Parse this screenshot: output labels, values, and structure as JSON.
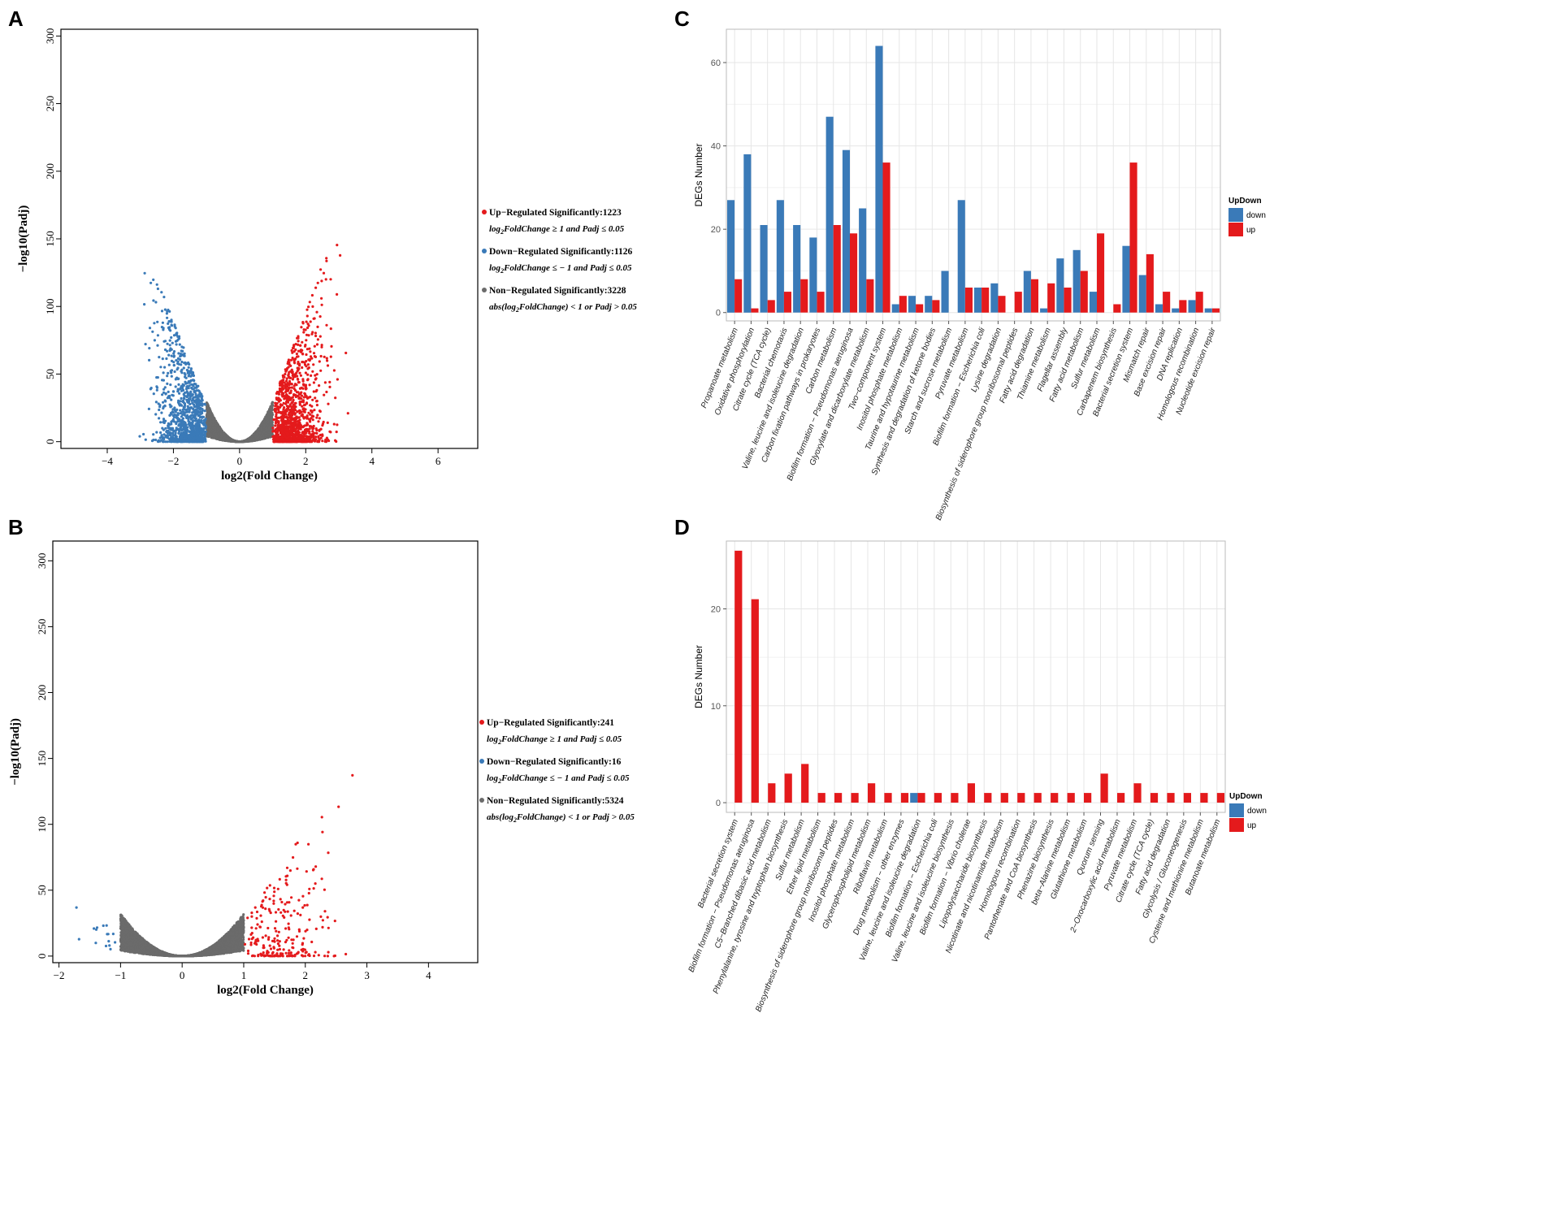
{
  "panels": {
    "A": "A",
    "B": "B",
    "C": "C",
    "D": "D"
  },
  "colors": {
    "up": "#e41a1c",
    "down": "#3a7ab8",
    "non": "#6b6b6b",
    "grid": "#e6e6e6"
  },
  "chart_data": [
    {
      "panel": "A",
      "type": "scatter",
      "title": "",
      "xlabel": "log2(Fold Change)",
      "ylabel": "−log10(Padj)",
      "xlim": [
        -5.4,
        7.2
      ],
      "ylim": [
        -5,
        305
      ],
      "xticks": [
        -4,
        -2,
        0,
        2,
        4,
        6
      ],
      "xtick_labels": [
        "−4",
        "−2",
        "0",
        "2",
        "4",
        "6"
      ],
      "yticks": [
        0,
        50,
        100,
        150,
        200,
        250,
        300
      ],
      "ytick_labels": [
        "0",
        "50",
        "100",
        "150",
        "200",
        "250",
        "300"
      ],
      "counts": {
        "up": 1223,
        "down": 1126,
        "non": 3228
      },
      "legend": [
        {
          "cls": "up",
          "title": "Up−Regulated Significantly:1223",
          "pre": "log",
          "sub": "2",
          "post": "FoldChange ≥ 1  and Padj ≤ 0.05"
        },
        {
          "cls": "down",
          "title": "Down−Regulated Significantly:1126",
          "pre": "log",
          "sub": "2",
          "post": "FoldChange ≤ − 1  and Padj ≤ 0.05"
        },
        {
          "cls": "non",
          "title": "Non−Regulated Significantly:3228",
          "pre": "abs(log",
          "sub": "2",
          "post": "FoldChange) < 1 or Padj > 0.05"
        }
      ]
    },
    {
      "panel": "B",
      "type": "scatter",
      "title": "",
      "xlabel": "log2(Fold Change)",
      "ylabel": "−log10(Padj)",
      "xlim": [
        -2.1,
        4.8
      ],
      "ylim": [
        -5,
        315
      ],
      "xticks": [
        -2,
        -1,
        0,
        1,
        2,
        3,
        4
      ],
      "xtick_labels": [
        "−2",
        "−1",
        "0",
        "1",
        "2",
        "3",
        "4"
      ],
      "yticks": [
        0,
        50,
        100,
        150,
        200,
        250,
        300
      ],
      "ytick_labels": [
        "0",
        "50",
        "100",
        "150",
        "200",
        "250",
        "300"
      ],
      "counts": {
        "up": 241,
        "down": 16,
        "non": 5324
      },
      "legend": [
        {
          "cls": "up",
          "title": "Up−Regulated Significantly:241",
          "pre": "log",
          "sub": "2",
          "post": "FoldChange ≥ 1  and Padj ≤ 0.05"
        },
        {
          "cls": "down",
          "title": "Down−Regulated Significantly:16",
          "pre": "log",
          "sub": "2",
          "post": "FoldChange ≤ − 1  and Padj ≤ 0.05"
        },
        {
          "cls": "non",
          "title": "Non−Regulated Significantly:5324",
          "pre": "abs(log",
          "sub": "2",
          "post": "FoldChange) < 1 or Padj > 0.05"
        }
      ]
    },
    {
      "panel": "C",
      "type": "bar",
      "title": "",
      "xlabel": "",
      "ylabel": "DEGs Number",
      "ylim": [
        -2,
        68
      ],
      "yticks": [
        0,
        20,
        40,
        60
      ],
      "legend_title": "UpDown",
      "categories": [
        "Propanoate metabolism",
        "Oxidative phosphorylation",
        "Citrate cycle (TCA cycle)",
        "Bacterial chemotaxis",
        "Valine, leucine and isoleucine degradation",
        "Carbon fixation pathways in prokaryotes",
        "Carbon metabolism",
        "Biofilm formation − Pseudomonas aeruginosa",
        "Glyoxylate and dicarboxylate metabolism",
        "Two−component system",
        "Inositol phosphate metabolism",
        "Taurine and hypotaurine metabolism",
        "Synthesis and degradation of ketone bodies",
        "Starch and sucrose metabolism",
        "Pyruvate metabolism",
        "Biofilm formation − Escherichia coli",
        "Lysine degradation",
        "Biosynthesis of siderophore group nonribosomal peptides",
        "Fatty acid degradation",
        "Thiamine metabolism",
        "Flagellar assembly",
        "Fatty acid metabolism",
        "Sulfur metabolism",
        "Carbapenem biosynthesis",
        "Bacterial secretion system",
        "Mismatch repair",
        "Base excision repair",
        "DNA replication",
        "Homologous recombination",
        "Nucleotide excision repair"
      ],
      "series": [
        {
          "name": "down",
          "values": [
            27,
            38,
            21,
            27,
            21,
            18,
            47,
            39,
            25,
            64,
            2,
            4,
            4,
            10,
            27,
            6,
            7,
            0,
            10,
            1,
            13,
            15,
            5,
            0,
            16,
            9,
            2,
            1,
            3,
            1
          ]
        },
        {
          "name": "up",
          "values": [
            8,
            1,
            3,
            5,
            8,
            5,
            21,
            19,
            8,
            36,
            4,
            2,
            3,
            0,
            6,
            6,
            4,
            5,
            8,
            7,
            6,
            10,
            19,
            2,
            36,
            14,
            5,
            3,
            5,
            1
          ]
        }
      ]
    },
    {
      "panel": "D",
      "type": "bar",
      "title": "",
      "xlabel": "",
      "ylabel": "DEGs Number",
      "ylim": [
        -1,
        27
      ],
      "yticks": [
        0,
        10,
        20
      ],
      "legend_title": "UpDown",
      "categories": [
        "Bacterial secretion system",
        "Biofilm formation − Pseudomonas aeruginosa",
        "C5−Branched dibasic acid metabolism",
        "Phenylalanine, tyrosine and tryptophan biosynthesis",
        "Sulfur metabolism",
        "Ether lipid metabolism",
        "Biosynthesis of siderophore group nonribosomal peptides",
        "Inositol phosphate metabolism",
        "Glycerophospholipid metabolism",
        "Riboflavin metabolism",
        "Drug metabolism − other enzymes",
        "Valine, leucine and isoleucine degradation",
        "Biofilm formation − Escherichia coli",
        "Valine, leucine and isoleucine biosynthesis",
        "Biofilm formation − Vibrio cholerae",
        "Lipopolysaccharide biosynthesis",
        "Nicotinate and nicotinamide metabolism",
        "Homologous recombination",
        "Pantothenate and CoA biosynthesis",
        "Phenazine biosynthesis",
        "beta−Alanine metabolism",
        "Glutathione metabolism",
        "Quorum sensing",
        "2−Oxocarboxylic acid metabolism",
        "Pyruvate metabolism",
        "Citrate cycle (TCA cycle)",
        "Fatty acid degradation",
        "Glycolysis / Gluconeogenesis",
        "Cysteine and methionine metabolism",
        "Butanoate metabolism"
      ],
      "series": [
        {
          "name": "down",
          "values": [
            0,
            0,
            0,
            0,
            0,
            0,
            0,
            0,
            0,
            0,
            0,
            1,
            0,
            0,
            0,
            0,
            0,
            0,
            0,
            0,
            0,
            0,
            0,
            0,
            0,
            0,
            0,
            0,
            0,
            0
          ]
        },
        {
          "name": "up",
          "values": [
            26,
            21,
            2,
            3,
            4,
            1,
            1,
            1,
            2,
            1,
            1,
            1,
            1,
            1,
            2,
            1,
            1,
            1,
            1,
            1,
            1,
            1,
            3,
            1,
            2,
            1,
            1,
            1,
            1,
            1
          ]
        }
      ]
    }
  ]
}
